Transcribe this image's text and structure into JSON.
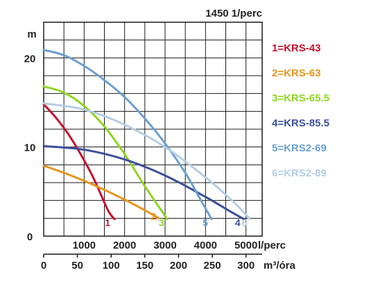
{
  "chart_data": {
    "type": "line",
    "title": "1450 1/perc",
    "ylabel": "m",
    "xlabel_primary": "l/perc",
    "xlabel_secondary": "m³/óra",
    "ylim": [
      0,
      24
    ],
    "xlim": [
      0,
      5400
    ],
    "x_ticks_primary": [
      "1000",
      "2000",
      "3000",
      "4000",
      "5000"
    ],
    "x_ticks_primary_values": [
      1000,
      2000,
      3000,
      4000,
      5000
    ],
    "x_ticks_secondary": [
      "0",
      "50",
      "100",
      "150",
      "200",
      "250",
      "300"
    ],
    "x_ticks_secondary_values_lps": [
      0,
      833,
      1667,
      2500,
      3333,
      4167,
      5000
    ],
    "y_ticks": [
      "0",
      "10",
      "20"
    ],
    "y_ticks_values": [
      0,
      10,
      20
    ],
    "grid": true,
    "legend_position": "right",
    "series": [
      {
        "name": "1=KRS-43",
        "curve_label": "1",
        "color": "#c8102e",
        "x": [
          0,
          300,
          600,
          900,
          1200,
          1400,
          1600,
          1750
        ],
        "y": [
          14.8,
          13.3,
          11.5,
          9.3,
          6.8,
          4.8,
          2.8,
          1.9
        ]
      },
      {
        "name": "2=KRS-63",
        "curve_label": "2",
        "color": "#e8941a",
        "x": [
          0,
          500,
          1000,
          1500,
          2000,
          2500,
          2850
        ],
        "y": [
          7.9,
          7.1,
          6.2,
          5.2,
          4.1,
          2.9,
          2.0
        ]
      },
      {
        "name": "3=KRS-65.5",
        "curve_label": "3",
        "color": "#8ed621",
        "x": [
          0,
          500,
          1000,
          1500,
          2000,
          2500,
          2950,
          3050
        ],
        "y": [
          16.8,
          16.1,
          14.6,
          12.3,
          9.2,
          5.6,
          2.6,
          1.9
        ]
      },
      {
        "name": "4=KRS-85.5",
        "curve_label": "4",
        "color": "#3c4f9a",
        "x": [
          0,
          1000,
          2000,
          3000,
          4000,
          4600,
          4950
        ],
        "y": [
          10.1,
          9.7,
          8.6,
          6.8,
          4.4,
          2.8,
          1.9
        ]
      },
      {
        "name": "5=KRS2-69",
        "curve_label": "5",
        "color": "#6b9fcf",
        "x": [
          0,
          500,
          1000,
          1500,
          2000,
          2500,
          3000,
          3500,
          3900,
          4150
        ],
        "y": [
          20.9,
          20.3,
          19.1,
          17.5,
          15.6,
          13.2,
          10.4,
          7.1,
          3.9,
          1.9
        ]
      },
      {
        "name": "6=KRS2-89",
        "curve_label": "6",
        "color": "#b4cde3",
        "x": [
          0,
          1000,
          2000,
          3000,
          4000,
          4700,
          5100
        ],
        "y": [
          14.9,
          14.2,
          12.5,
          10.0,
          6.6,
          3.8,
          1.9
        ]
      }
    ]
  }
}
